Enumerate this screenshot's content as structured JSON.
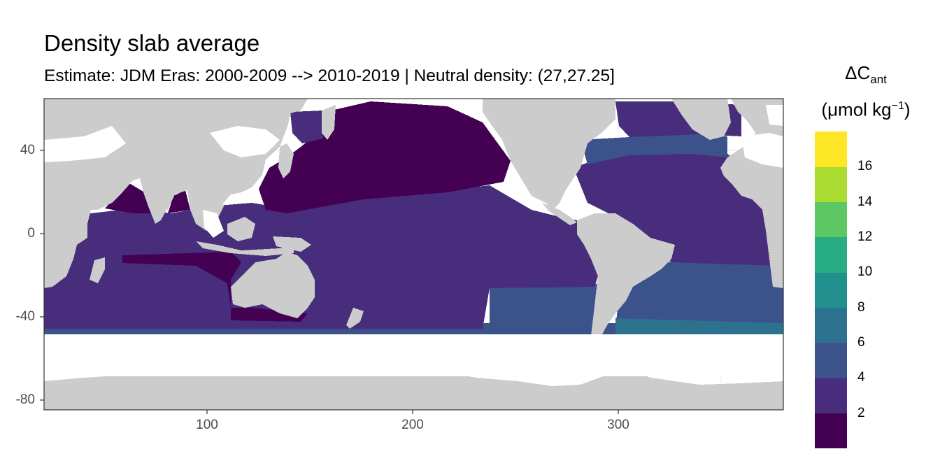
{
  "title": "Density slab average",
  "subtitle": "Estimate: JDM Eras: 2000-2009 --> 2010-2019 | Neutral density: (27,27.25]",
  "legend": {
    "title_symbol": "ΔC",
    "title_sub": "ant",
    "unit_prefix": "(μmol kg",
    "unit_sup": "−1",
    "unit_suffix": ")",
    "bins": [
      {
        "range": "0-2",
        "color": "#440154"
      },
      {
        "range": "2-4",
        "color": "#472D7B"
      },
      {
        "range": "4-6",
        "color": "#3B528B"
      },
      {
        "range": "6-8",
        "color": "#2C728E"
      },
      {
        "range": "8-10",
        "color": "#21908C"
      },
      {
        "range": "10-12",
        "color": "#27AD81"
      },
      {
        "range": "12-14",
        "color": "#5DC863"
      },
      {
        "range": "14-16",
        "color": "#AADC32"
      },
      {
        "range": "16-18",
        "color": "#FDE725"
      }
    ],
    "labels": [
      "2",
      "4",
      "6",
      "8",
      "10",
      "12",
      "14",
      "16"
    ]
  },
  "chart_data": {
    "type": "heatmap",
    "title": "Density slab average",
    "subtitle": "Estimate: JDM Eras: 2000-2009 --> 2010-2019 | Neutral density: (27,27.25]",
    "xlabel": "",
    "ylabel": "",
    "xlim": [
      20,
      380
    ],
    "ylim": [
      -85,
      65
    ],
    "x_ticks": [
      100,
      200,
      300
    ],
    "y_ticks": [
      40,
      0,
      -40,
      -80
    ],
    "grid": true,
    "legend_position": "right",
    "colors": {
      "land": "#CCCCCC",
      "no_data": "#FFFFFF",
      "panel_border": "#333333",
      "grid": "#EBEBEB"
    },
    "approx_field_zones": [
      {
        "region": "North Pacific",
        "value_bin": "0-2"
      },
      {
        "region": "Arabian Sea / Bay of Bengal",
        "value_bin": "0-2"
      },
      {
        "region": "Tropical & South Pacific",
        "value_bin": "2-4"
      },
      {
        "region": "Indian Ocean",
        "value_bin": "2-4"
      },
      {
        "region": "Atlantic Ocean",
        "value_bin": "2-4"
      },
      {
        "region": "North Atlantic subpolar",
        "value_bin": "4-6"
      },
      {
        "region": "South Atlantic ~30-45S",
        "value_bin": "4-6"
      },
      {
        "region": "Southern band ~45-55S",
        "value_bin": "4-6"
      },
      {
        "region": "SW Atlantic ~45-50S",
        "value_bin": "6-8"
      }
    ]
  }
}
